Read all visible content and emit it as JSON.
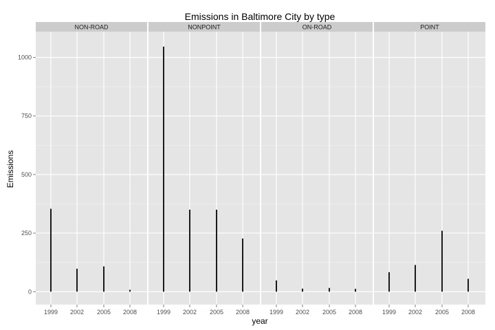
{
  "chart_data": {
    "type": "bar",
    "title": "Emissions in Baltimore City by type",
    "xlabel": "year",
    "ylabel": "Emissions",
    "categories": [
      "1999",
      "2002",
      "2005",
      "2008"
    ],
    "ylim": [
      -55,
      1110
    ],
    "y_ticks": [
      0,
      250,
      500,
      750,
      1000
    ],
    "grid": true,
    "panels": [
      {
        "name": "NON-ROAD",
        "values": [
          354,
          98,
          108,
          8
        ]
      },
      {
        "name": "NONPOINT",
        "values": [
          1046,
          350,
          350,
          227
        ]
      },
      {
        "name": "ON-ROAD",
        "values": [
          48,
          13,
          16,
          12
        ]
      },
      {
        "name": "POINT",
        "values": [
          83,
          114,
          260,
          55
        ]
      }
    ],
    "colors": {
      "panel_bg": "#e5e5e5",
      "strip_bg": "#cccccc",
      "gridline": "#ffffff",
      "bar": "#1a1a1a",
      "text": "#4d4d4d"
    }
  }
}
